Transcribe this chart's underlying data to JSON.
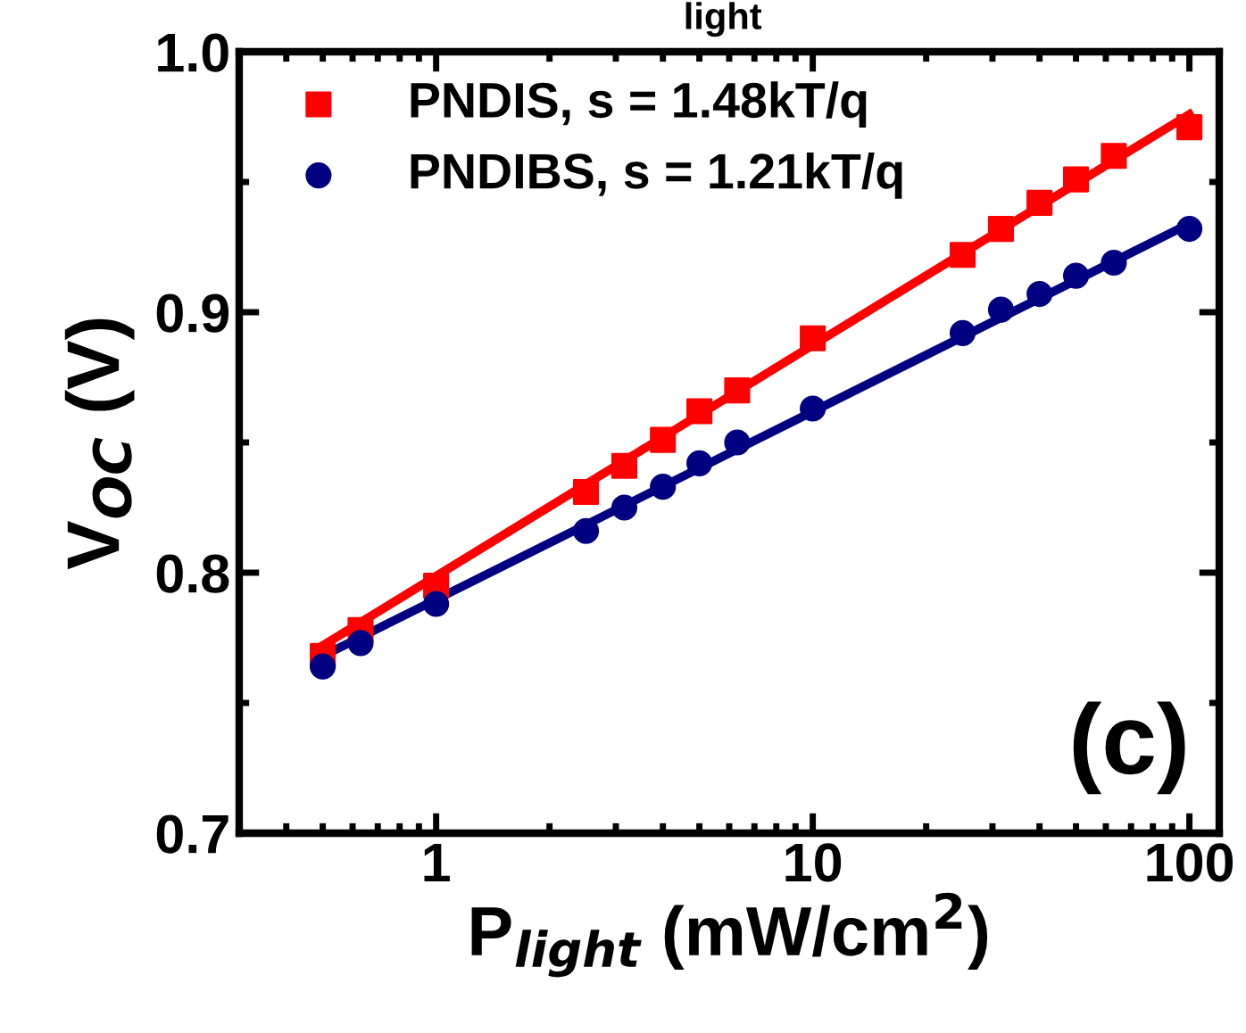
{
  "chart_data": {
    "type": "scatter",
    "xlabel": "P$_{light}$ (mW/cm$^{2}$)",
    "ylabel": "V$_{OC}$ (V)",
    "log": "x",
    "xlim": [
      0.3,
      120
    ],
    "xticks": [
      1,
      10,
      100
    ],
    "ylim": [
      0.7,
      1.0
    ],
    "yticks": [
      {
        "value": 0.7,
        "label": "0.7"
      },
      {
        "value": 0.8,
        "label": "0.8"
      },
      {
        "value": 0.9,
        "label": "0.9"
      },
      {
        "value": 1.0,
        "label": "1.0"
      }
    ],
    "grid": false,
    "legend": "top left",
    "annotations": [
      "(c)",
      "light"
    ],
    "series": [
      {
        "name": "PNDIS, s = 1.48kT/q",
        "color": "#ff0000",
        "marker": "square",
        "x": [
          0.5,
          0.63,
          1,
          2.5,
          3.16,
          4,
          5,
          6.3,
          10,
          25,
          31.6,
          40,
          50,
          63,
          100
        ],
        "values": [
          0.768,
          0.778,
          0.795,
          0.831,
          0.841,
          0.851,
          0.862,
          0.87,
          0.89,
          0.922,
          0.932,
          0.942,
          0.951,
          0.96,
          0.971
        ]
      },
      {
        "name": "PNDIBS, s = 1.21kT/q",
        "color": "#000080",
        "marker": "circle",
        "x": [
          0.5,
          0.63,
          1,
          2.5,
          3.16,
          4,
          5,
          6.3,
          10,
          25,
          31.6,
          40,
          50,
          63,
          100
        ],
        "values": [
          0.764,
          0.773,
          0.788,
          0.816,
          0.825,
          0.833,
          0.842,
          0.85,
          0.863,
          0.892,
          0.901,
          0.907,
          0.914,
          0.919,
          0.932
        ]
      },
      {
        "type": "line",
        "color": "#ff0000",
        "line_style": "solid",
        "x": [
          0.5,
          100
        ],
        "values": [
          0.772,
          0.976
        ]
      },
      {
        "type": "line",
        "color": "#000080",
        "line_style": "solid",
        "x": [
          0.5,
          100
        ],
        "values": [
          0.768,
          0.934
        ]
      }
    ]
  }
}
